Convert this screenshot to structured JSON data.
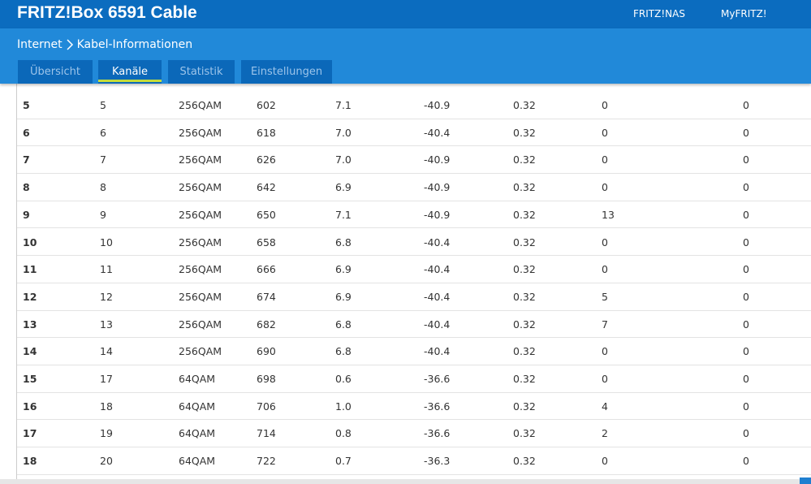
{
  "header": {
    "title": "FRITZ!Box 6591 Cable",
    "links": [
      "FRITZ!NAS",
      "MyFRITZ!"
    ]
  },
  "breadcrumb": {
    "section": "Internet",
    "page": "Kabel-Informationen"
  },
  "tabs": [
    "Übersicht",
    "Kanäle",
    "Statistik",
    "Einstellungen"
  ],
  "active_tab": 1,
  "table": {
    "rows": [
      [
        "5",
        "5",
        "256QAM",
        "602",
        "7.1",
        "-40.9",
        "0.32",
        "0",
        "0"
      ],
      [
        "6",
        "6",
        "256QAM",
        "618",
        "7.0",
        "-40.4",
        "0.32",
        "0",
        "0"
      ],
      [
        "7",
        "7",
        "256QAM",
        "626",
        "7.0",
        "-40.9",
        "0.32",
        "0",
        "0"
      ],
      [
        "8",
        "8",
        "256QAM",
        "642",
        "6.9",
        "-40.9",
        "0.32",
        "0",
        "0"
      ],
      [
        "9",
        "9",
        "256QAM",
        "650",
        "7.1",
        "-40.9",
        "0.32",
        "13",
        "0"
      ],
      [
        "10",
        "10",
        "256QAM",
        "658",
        "6.8",
        "-40.4",
        "0.32",
        "0",
        "0"
      ],
      [
        "11",
        "11",
        "256QAM",
        "666",
        "6.9",
        "-40.4",
        "0.32",
        "0",
        "0"
      ],
      [
        "12",
        "12",
        "256QAM",
        "674",
        "6.9",
        "-40.4",
        "0.32",
        "5",
        "0"
      ],
      [
        "13",
        "13",
        "256QAM",
        "682",
        "6.8",
        "-40.4",
        "0.32",
        "7",
        "0"
      ],
      [
        "14",
        "14",
        "256QAM",
        "690",
        "6.8",
        "-40.4",
        "0.32",
        "0",
        "0"
      ],
      [
        "15",
        "17",
        "64QAM",
        "698",
        "0.6",
        "-36.6",
        "0.32",
        "0",
        "0"
      ],
      [
        "16",
        "18",
        "64QAM",
        "706",
        "1.0",
        "-36.6",
        "0.32",
        "4",
        "0"
      ],
      [
        "17",
        "19",
        "64QAM",
        "714",
        "0.8",
        "-36.6",
        "0.32",
        "2",
        "0"
      ],
      [
        "18",
        "20",
        "64QAM",
        "722",
        "0.7",
        "-36.3",
        "0.32",
        "0",
        "0"
      ]
    ]
  }
}
